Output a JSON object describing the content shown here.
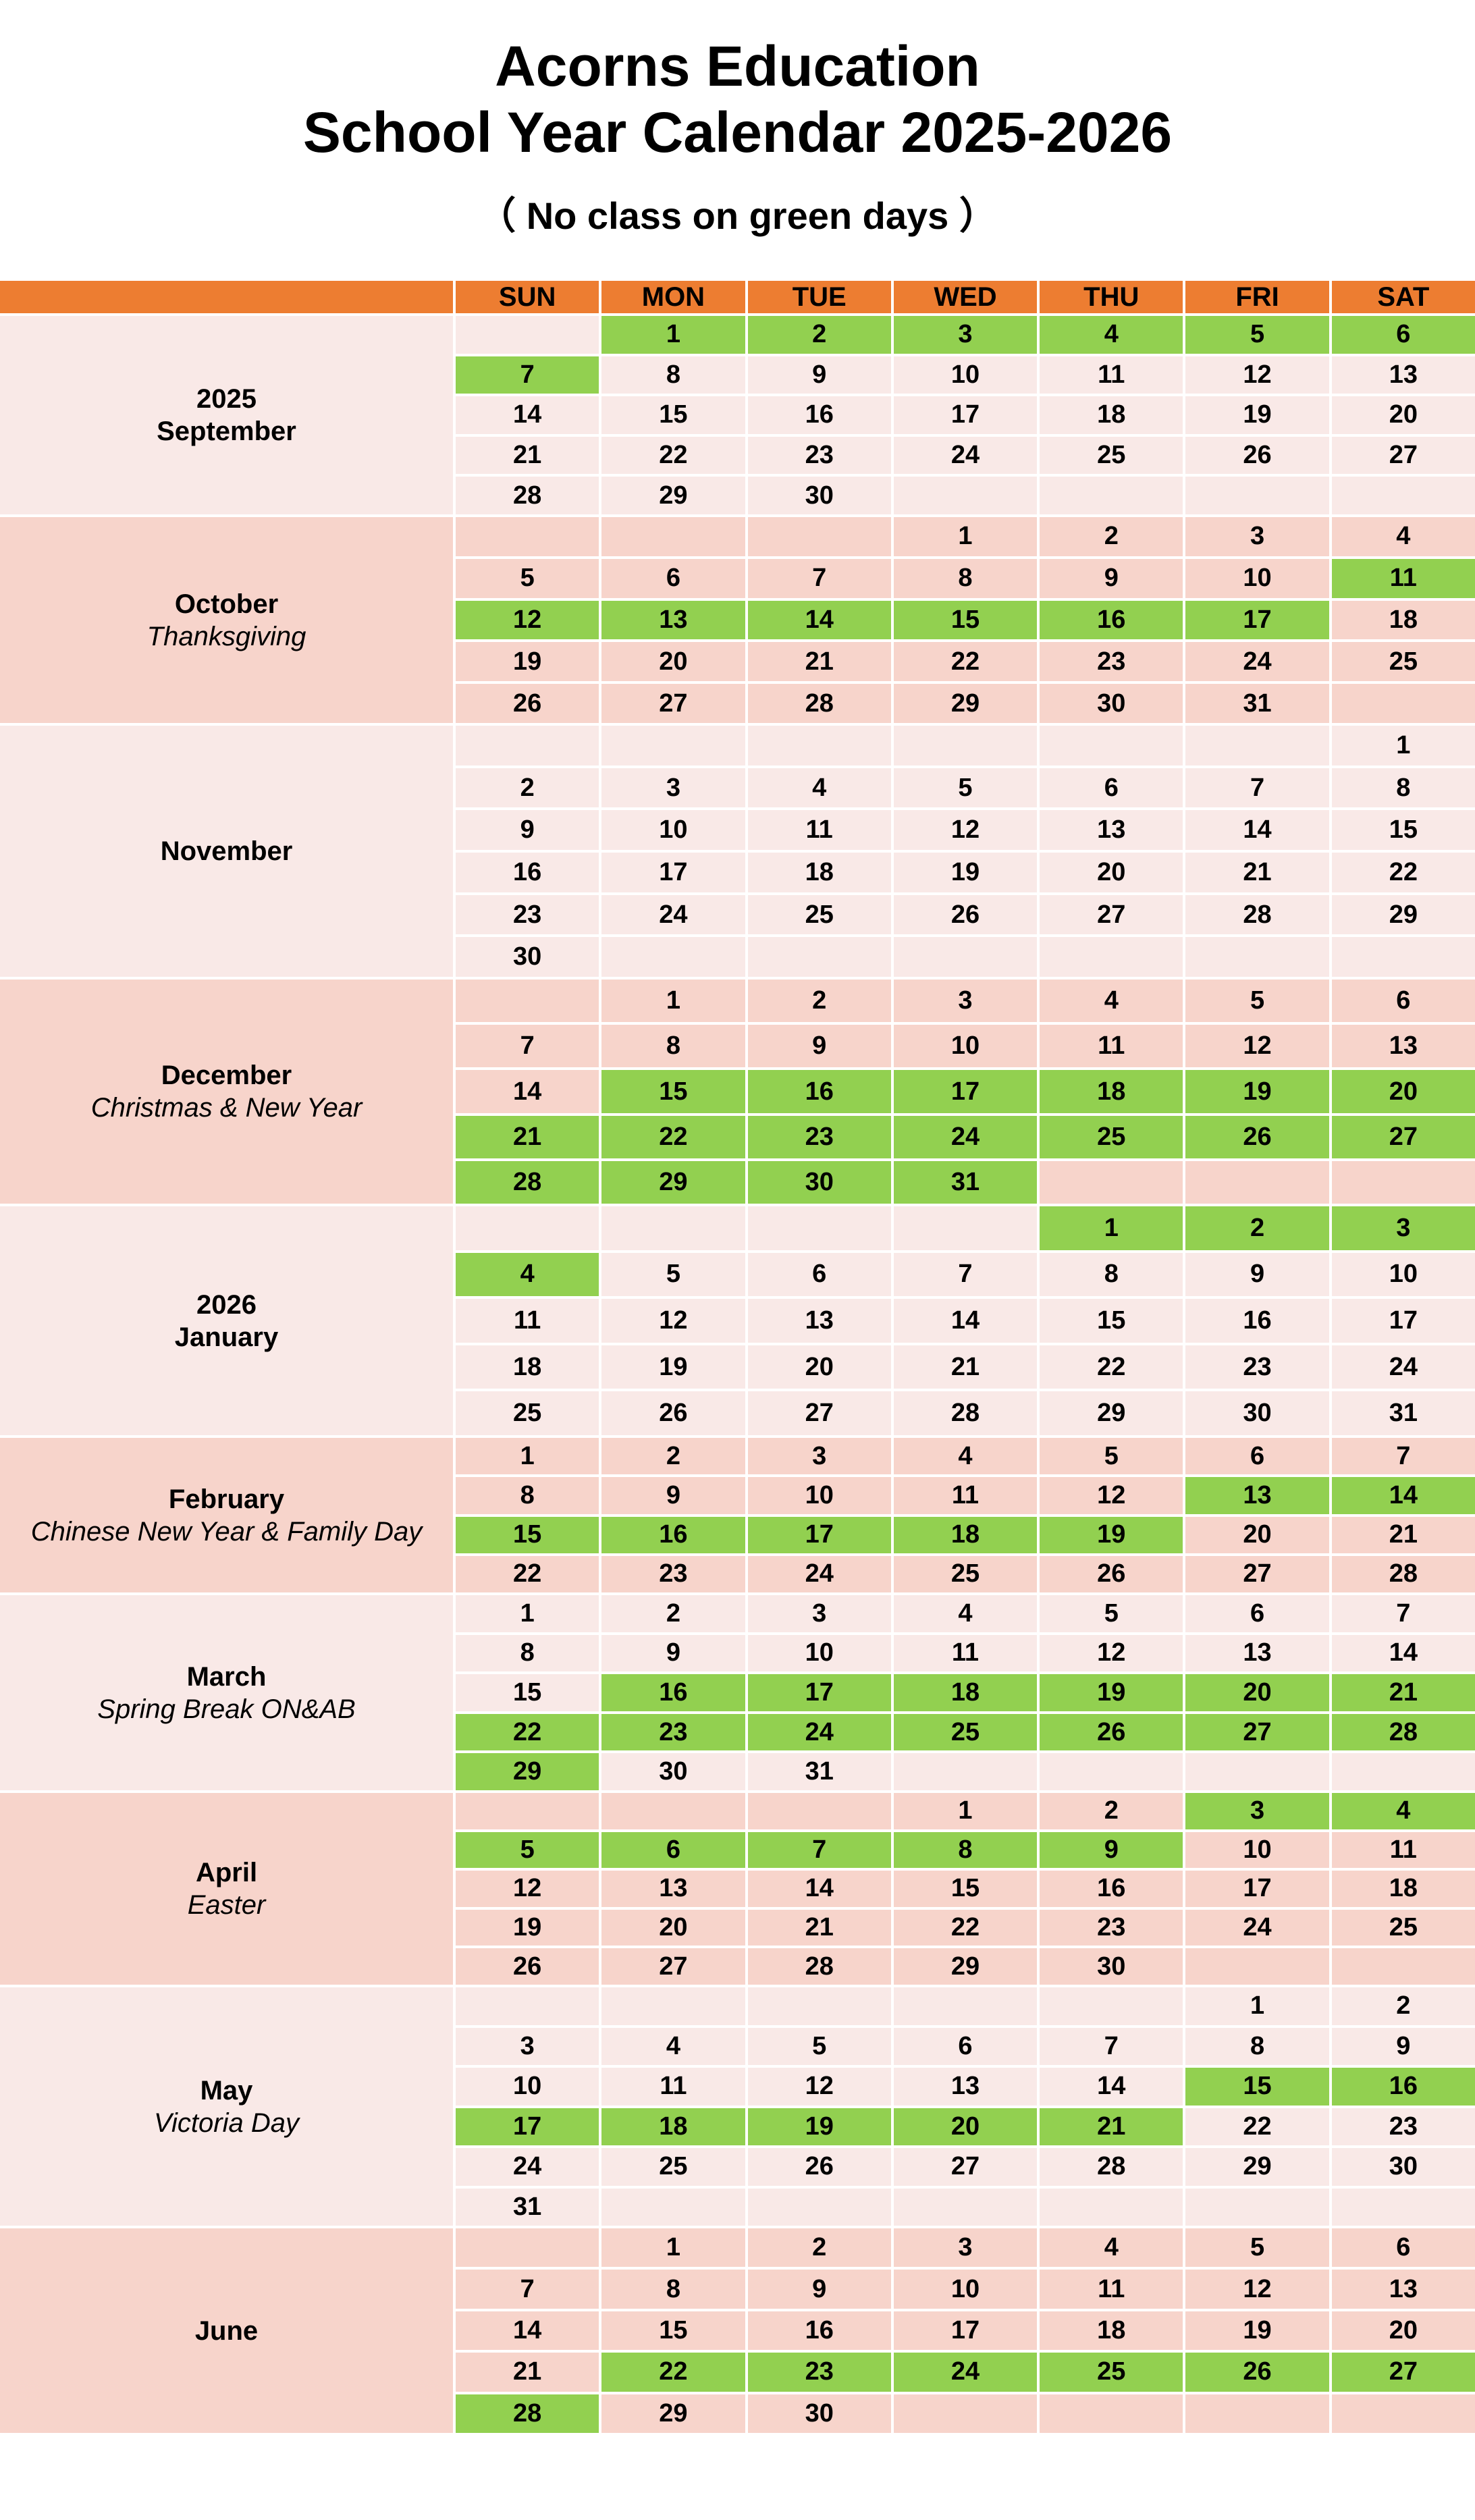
{
  "title_line1": "Acorns Education",
  "title_line2": "School Year Calendar 2025-2026",
  "subtitle": "（ No class on green days ）",
  "colors": {
    "header": "#ED7D31",
    "light": "#F9E9E7",
    "dark": "#F7D4CB",
    "green": "#92D050"
  },
  "weekdays": [
    "SUN",
    "MON",
    "TUE",
    "WED",
    "THU",
    "FRI",
    "SAT"
  ],
  "months": [
    {
      "labels": [
        "2025",
        "September"
      ],
      "sublabel": "",
      "shade": "light",
      "weeks": [
        [
          null,
          1,
          2,
          3,
          4,
          5,
          6
        ],
        [
          7,
          8,
          9,
          10,
          11,
          12,
          13
        ],
        [
          14,
          15,
          16,
          17,
          18,
          19,
          20
        ],
        [
          21,
          22,
          23,
          24,
          25,
          26,
          27
        ],
        [
          28,
          29,
          30,
          null,
          null,
          null,
          null
        ]
      ],
      "green": [
        1,
        2,
        3,
        4,
        5,
        6,
        7
      ]
    },
    {
      "labels": [
        "October"
      ],
      "sublabel": "Thanksgiving",
      "shade": "dark",
      "weeks": [
        [
          null,
          null,
          null,
          1,
          2,
          3,
          4
        ],
        [
          5,
          6,
          7,
          8,
          9,
          10,
          11
        ],
        [
          12,
          13,
          14,
          15,
          16,
          17,
          18
        ],
        [
          19,
          20,
          21,
          22,
          23,
          24,
          25
        ],
        [
          26,
          27,
          28,
          29,
          30,
          31,
          null
        ]
      ],
      "green": [
        11,
        12,
        13,
        14,
        15,
        16,
        17
      ]
    },
    {
      "labels": [
        "November"
      ],
      "sublabel": "",
      "shade": "light",
      "weeks": [
        [
          null,
          null,
          null,
          null,
          null,
          null,
          1
        ],
        [
          2,
          3,
          4,
          5,
          6,
          7,
          8
        ],
        [
          9,
          10,
          11,
          12,
          13,
          14,
          15
        ],
        [
          16,
          17,
          18,
          19,
          20,
          21,
          22
        ],
        [
          23,
          24,
          25,
          26,
          27,
          28,
          29
        ],
        [
          30,
          null,
          null,
          null,
          null,
          null,
          null
        ]
      ],
      "green": []
    },
    {
      "labels": [
        "December"
      ],
      "sublabel": "Christmas & New Year",
      "shade": "dark",
      "weeks": [
        [
          null,
          1,
          2,
          3,
          4,
          5,
          6
        ],
        [
          7,
          8,
          9,
          10,
          11,
          12,
          13
        ],
        [
          14,
          15,
          16,
          17,
          18,
          19,
          20
        ],
        [
          21,
          22,
          23,
          24,
          25,
          26,
          27
        ],
        [
          28,
          29,
          30,
          31,
          null,
          null,
          null
        ]
      ],
      "green": [
        15,
        16,
        17,
        18,
        19,
        20,
        21,
        22,
        23,
        24,
        25,
        26,
        27,
        28,
        29,
        30,
        31
      ]
    },
    {
      "labels": [
        "2026",
        "January"
      ],
      "sublabel": "",
      "shade": "light",
      "weeks": [
        [
          null,
          null,
          null,
          null,
          1,
          2,
          3
        ],
        [
          4,
          5,
          6,
          7,
          8,
          9,
          10
        ],
        [
          11,
          12,
          13,
          14,
          15,
          16,
          17
        ],
        [
          18,
          19,
          20,
          21,
          22,
          23,
          24
        ],
        [
          25,
          26,
          27,
          28,
          29,
          30,
          31
        ]
      ],
      "green": [
        1,
        2,
        3,
        4
      ]
    },
    {
      "labels": [
        "February"
      ],
      "sublabel": "Chinese New Year & Family Day",
      "shade": "dark",
      "weeks": [
        [
          1,
          2,
          3,
          4,
          5,
          6,
          7
        ],
        [
          8,
          9,
          10,
          11,
          12,
          13,
          14
        ],
        [
          15,
          16,
          17,
          18,
          19,
          20,
          21
        ],
        [
          22,
          23,
          24,
          25,
          26,
          27,
          28
        ]
      ],
      "green": [
        13,
        14,
        15,
        16,
        17,
        18,
        19
      ]
    },
    {
      "labels": [
        "March"
      ],
      "sublabel": "Spring Break ON&AB",
      "shade": "light",
      "weeks": [
        [
          1,
          2,
          3,
          4,
          5,
          6,
          7
        ],
        [
          8,
          9,
          10,
          11,
          12,
          13,
          14
        ],
        [
          15,
          16,
          17,
          18,
          19,
          20,
          21
        ],
        [
          22,
          23,
          24,
          25,
          26,
          27,
          28
        ],
        [
          29,
          30,
          31,
          null,
          null,
          null,
          null
        ]
      ],
      "green": [
        16,
        17,
        18,
        19,
        20,
        21,
        22,
        23,
        24,
        25,
        26,
        27,
        28,
        29
      ]
    },
    {
      "labels": [
        "April"
      ],
      "sublabel": "Easter",
      "shade": "dark",
      "weeks": [
        [
          null,
          null,
          null,
          1,
          2,
          3,
          4
        ],
        [
          5,
          6,
          7,
          8,
          9,
          10,
          11
        ],
        [
          12,
          13,
          14,
          15,
          16,
          17,
          18
        ],
        [
          19,
          20,
          21,
          22,
          23,
          24,
          25
        ],
        [
          26,
          27,
          28,
          29,
          30,
          null,
          null
        ]
      ],
      "green": [
        3,
        4,
        5,
        6,
        7,
        8,
        9
      ]
    },
    {
      "labels": [
        "May"
      ],
      "sublabel": "Victoria Day",
      "shade": "light",
      "weeks": [
        [
          null,
          null,
          null,
          null,
          null,
          1,
          2
        ],
        [
          3,
          4,
          5,
          6,
          7,
          8,
          9
        ],
        [
          10,
          11,
          12,
          13,
          14,
          15,
          16
        ],
        [
          17,
          18,
          19,
          20,
          21,
          22,
          23
        ],
        [
          24,
          25,
          26,
          27,
          28,
          29,
          30
        ],
        [
          31,
          null,
          null,
          null,
          null,
          null,
          null
        ]
      ],
      "green": [
        15,
        16,
        17,
        18,
        19,
        20,
        21
      ]
    },
    {
      "labels": [
        "June"
      ],
      "sublabel": "",
      "shade": "dark",
      "weeks": [
        [
          null,
          1,
          2,
          3,
          4,
          5,
          6
        ],
        [
          7,
          8,
          9,
          10,
          11,
          12,
          13
        ],
        [
          14,
          15,
          16,
          17,
          18,
          19,
          20
        ],
        [
          21,
          22,
          23,
          24,
          25,
          26,
          27
        ],
        [
          28,
          29,
          30,
          null,
          null,
          null,
          null
        ]
      ],
      "green": [
        22,
        23,
        24,
        25,
        26,
        27,
        28
      ]
    }
  ]
}
